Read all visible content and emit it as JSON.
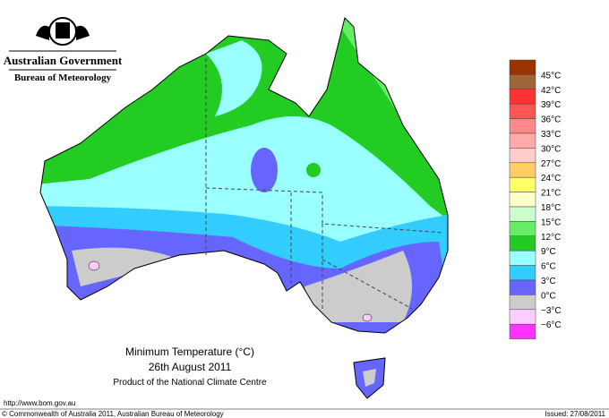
{
  "header": {
    "government": "Australian Government",
    "agency": "Bureau of Meteorology"
  },
  "map": {
    "title": "Minimum Temperature (°C)",
    "date": "26th August 2011",
    "product": "Product of the National Climate Centre"
  },
  "legend": {
    "labels": [
      "45°C",
      "42°C",
      "39°C",
      "36°C",
      "33°C",
      "30°C",
      "27°C",
      "24°C",
      "21°C",
      "18°C",
      "15°C",
      "12°C",
      "9°C",
      "6°C",
      "3°C",
      "0°C",
      "−3°C",
      "−6°C"
    ],
    "colors": [
      "#993300",
      "#a0643c",
      "#ff3333",
      "#ff5555",
      "#ff8888",
      "#ffaaaa",
      "#ffcccc",
      "#ffcc66",
      "#ffff66",
      "#ffffcc",
      "#ccffcc",
      "#66ee66",
      "#22cc22",
      "#99ffff",
      "#33ccff",
      "#6666ff",
      "#cccccc",
      "#ffccff",
      "#ff33ff"
    ]
  },
  "footer": {
    "url": "http://www.bom.gov.au",
    "copyright": "© Commonwealth of Australia 2011, Australian Bureau of Meteorology",
    "issued": "Issued: 27/08/2011"
  }
}
